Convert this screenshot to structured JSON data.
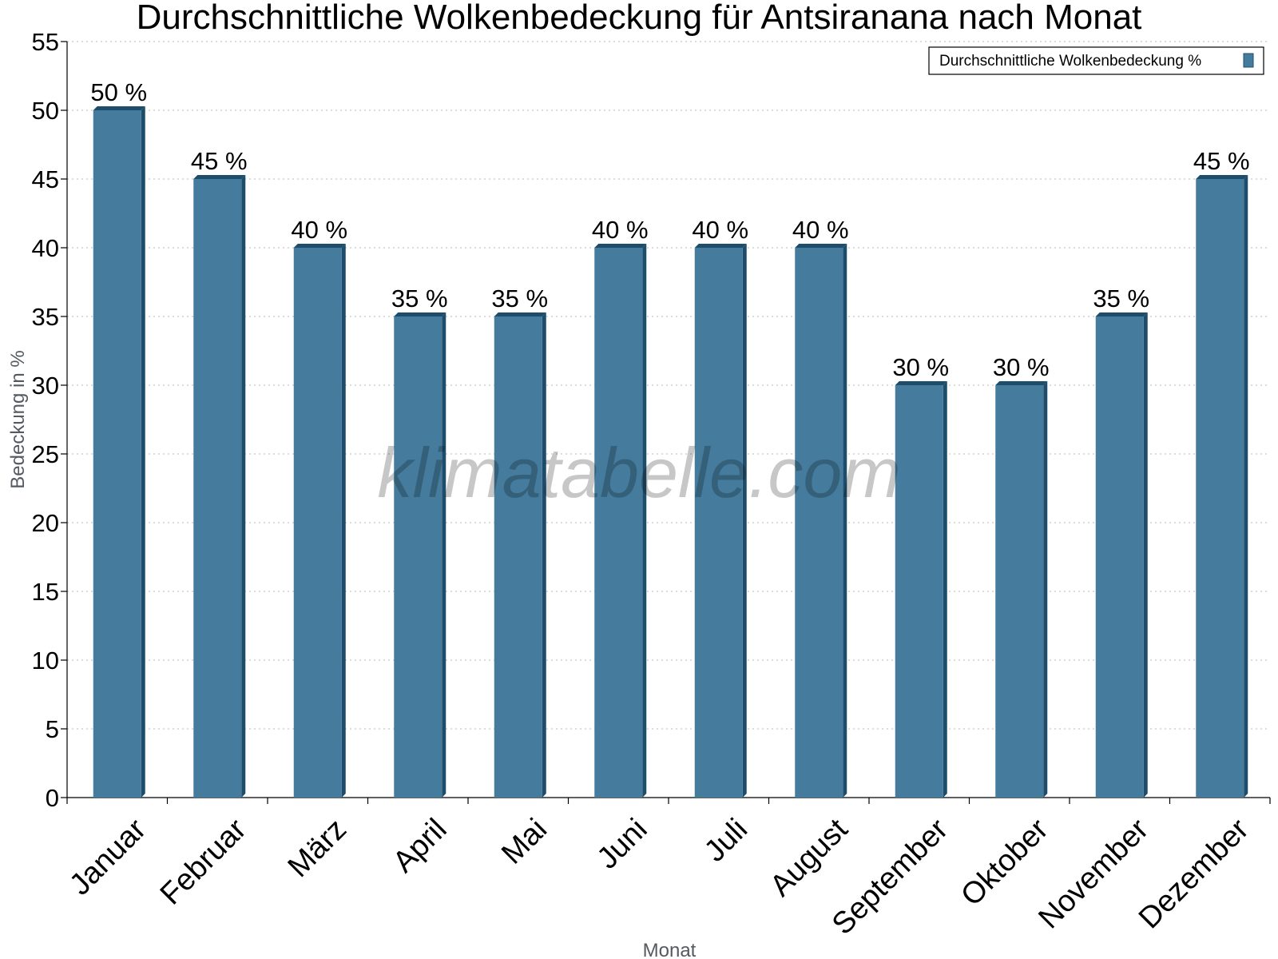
{
  "chart_data": {
    "type": "bar",
    "title": "Durchschnittliche Wolkenbedeckung für Antsiranana nach Monat",
    "xlabel": "Monat",
    "ylabel": "Bedeckung in %",
    "categories": [
      "Januar",
      "Februar",
      "März",
      "April",
      "Mai",
      "Juni",
      "Juli",
      "August",
      "September",
      "Oktober",
      "November",
      "Dezember"
    ],
    "series": [
      {
        "name": "Durchschnittliche Wolkenbedeckung %",
        "values": [
          50,
          45,
          40,
          35,
          35,
          40,
          40,
          40,
          30,
          30,
          35,
          45
        ],
        "labels": [
          "50 %",
          "45 %",
          "40 %",
          "35 %",
          "35 %",
          "40 %",
          "40 %",
          "40 %",
          "30 %",
          "30 %",
          "35 %",
          "45 %"
        ]
      }
    ],
    "ylim": [
      0,
      55
    ],
    "yticks": [
      "0",
      "5",
      "10",
      "15",
      "20",
      "25",
      "30",
      "35",
      "40",
      "45",
      "50",
      "55"
    ],
    "grid": true,
    "legend_position": "top-right",
    "bar_color": "#457b9d",
    "bar_dark_color": "#1e4d6b",
    "watermark": "klimatabelle.com"
  }
}
